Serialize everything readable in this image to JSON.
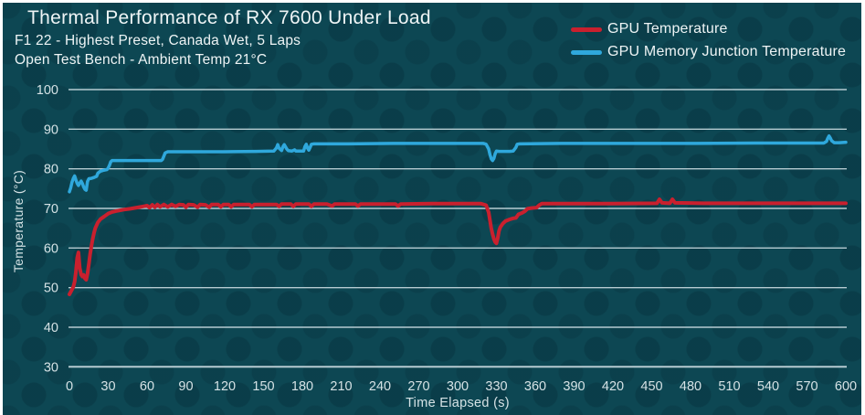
{
  "header": {
    "title": "Thermal Performance of RX 7600 Under Load",
    "subtitle1": "F1 22 - Highest Preset, Canada Wet, 5 Laps",
    "subtitle2": "Open Test Bench - Ambient Temp 21°C"
  },
  "legend": {
    "items": [
      {
        "label": "GPU Temperature",
        "color": "#c9202e"
      },
      {
        "label": "GPU Memory Junction Temperature",
        "color": "#2fa8dc"
      }
    ]
  },
  "colors": {
    "background": "#0d4753",
    "frame": "#ffffff",
    "grid": "#b6cbd1",
    "text": "#eef4f5",
    "tick": "#d5e2e5",
    "red": "#c9202e",
    "blue": "#2fa8dc"
  },
  "chart_data": {
    "type": "line",
    "title": "Thermal Performance of RX 7600 Under Load",
    "subtitle": "F1 22 - Highest Preset, Canada Wet, 5 Laps | Open Test Bench - Ambient Temp 21°C",
    "xlabel": "Time Elapsed (s)",
    "ylabel": "Temperature (°C)",
    "xlim": [
      0,
      600
    ],
    "ylim": [
      30,
      100
    ],
    "xticks": [
      0,
      30,
      60,
      90,
      120,
      150,
      180,
      210,
      240,
      270,
      300,
      330,
      360,
      390,
      420,
      450,
      480,
      510,
      540,
      570,
      600
    ],
    "yticks": [
      30,
      40,
      50,
      60,
      70,
      80,
      90,
      100
    ],
    "grid": "horizontal",
    "legend_position": "top-right",
    "series": [
      {
        "name": "GPU Temperature",
        "color": "#c9202e",
        "width": 4,
        "points": [
          [
            0,
            48.3
          ],
          [
            2,
            49.5
          ],
          [
            3,
            50.2
          ],
          [
            4,
            51.5
          ],
          [
            5,
            54
          ],
          [
            6,
            57.5
          ],
          [
            7,
            58.9
          ],
          [
            8,
            55
          ],
          [
            9,
            53.3
          ],
          [
            10,
            52.8
          ],
          [
            11,
            53.2
          ],
          [
            12,
            52.3
          ],
          [
            13,
            52
          ],
          [
            14,
            53.5
          ],
          [
            15,
            56
          ],
          [
            16,
            58.5
          ],
          [
            17,
            60.5
          ],
          [
            18,
            62.3
          ],
          [
            19,
            63.8
          ],
          [
            20,
            65
          ],
          [
            22,
            66.5
          ],
          [
            24,
            67.3
          ],
          [
            27,
            68
          ],
          [
            30,
            68.7
          ],
          [
            33,
            69.1
          ],
          [
            37,
            69.4
          ],
          [
            42,
            69.7
          ],
          [
            47,
            69.9
          ],
          [
            52,
            70.2
          ],
          [
            57,
            70.5
          ],
          [
            60,
            70.7
          ],
          [
            62,
            70.2
          ],
          [
            64,
            70.9
          ],
          [
            66,
            70.3
          ],
          [
            68,
            71
          ],
          [
            70,
            70.4
          ],
          [
            73,
            71
          ],
          [
            76,
            70.4
          ],
          [
            79,
            71
          ],
          [
            82,
            70.5
          ],
          [
            85,
            71
          ],
          [
            88,
            70.9
          ],
          [
            90,
            70.3
          ],
          [
            92,
            71
          ],
          [
            96,
            70.9
          ],
          [
            99,
            70.3
          ],
          [
            101,
            71
          ],
          [
            105,
            70.9
          ],
          [
            108,
            70.3
          ],
          [
            110,
            71
          ],
          [
            115,
            71
          ],
          [
            117,
            70.4
          ],
          [
            119,
            71
          ],
          [
            123,
            71
          ],
          [
            125,
            70.4
          ],
          [
            127,
            71
          ],
          [
            133,
            71
          ],
          [
            139,
            71
          ],
          [
            141,
            70.4
          ],
          [
            143,
            71
          ],
          [
            152,
            71
          ],
          [
            160,
            71
          ],
          [
            162,
            70.5
          ],
          [
            164,
            71.1
          ],
          [
            171,
            71.1
          ],
          [
            173,
            70.5
          ],
          [
            175,
            71.1
          ],
          [
            185,
            71.1
          ],
          [
            187,
            70.5
          ],
          [
            189,
            71.1
          ],
          [
            199,
            71.1
          ],
          [
            203,
            70.6
          ],
          [
            205,
            71.1
          ],
          [
            221,
            71.1
          ],
          [
            223,
            70.6
          ],
          [
            225,
            71.1
          ],
          [
            252,
            71.1
          ],
          [
            254,
            70.6
          ],
          [
            256,
            71.1
          ],
          [
            280,
            71.2
          ],
          [
            318,
            71.2
          ],
          [
            322,
            70.8
          ],
          [
            324,
            69
          ],
          [
            325,
            67
          ],
          [
            326,
            65
          ],
          [
            327,
            63.5
          ],
          [
            328,
            62.3
          ],
          [
            329,
            61.5
          ],
          [
            330,
            61.2
          ],
          [
            331,
            62.5
          ],
          [
            332,
            64.3
          ],
          [
            333,
            65.3
          ],
          [
            335,
            66.2
          ],
          [
            337,
            66.8
          ],
          [
            340,
            67.2
          ],
          [
            343,
            67.5
          ],
          [
            345,
            67.6
          ],
          [
            347,
            68.5
          ],
          [
            350,
            68.9
          ],
          [
            352,
            69.3
          ],
          [
            354,
            69.9
          ],
          [
            357,
            70.1
          ],
          [
            361,
            70.2
          ],
          [
            363,
            70.8
          ],
          [
            365,
            71.2
          ],
          [
            380,
            71.2
          ],
          [
            420,
            71.2
          ],
          [
            454,
            71.3
          ],
          [
            456,
            72.3
          ],
          [
            458,
            71.4
          ],
          [
            464,
            71.3
          ],
          [
            466,
            72.3
          ],
          [
            468,
            71.4
          ],
          [
            490,
            71.3
          ],
          [
            540,
            71.3
          ],
          [
            600,
            71.3
          ]
        ]
      },
      {
        "name": "GPU Memory Junction Temperature",
        "color": "#2fa8dc",
        "width": 3.5,
        "points": [
          [
            0,
            74.2
          ],
          [
            1,
            75.2
          ],
          [
            2,
            76.6
          ],
          [
            3,
            77.6
          ],
          [
            4,
            78.2
          ],
          [
            5,
            77.2
          ],
          [
            6,
            76.3
          ],
          [
            7,
            75.8
          ],
          [
            8,
            76.4
          ],
          [
            9,
            76.9
          ],
          [
            10,
            76.3
          ],
          [
            11,
            75.4
          ],
          [
            12,
            74.8
          ],
          [
            13,
            74.6
          ],
          [
            14,
            76.8
          ],
          [
            15,
            77.5
          ],
          [
            17,
            77.6
          ],
          [
            19,
            77.8
          ],
          [
            21,
            78.1
          ],
          [
            22,
            78.9
          ],
          [
            24,
            79.4
          ],
          [
            26,
            79.6
          ],
          [
            29,
            79.8
          ],
          [
            30,
            80.2
          ],
          [
            31,
            80.9
          ],
          [
            32,
            81.8
          ],
          [
            33,
            82.1
          ],
          [
            45,
            82.1
          ],
          [
            60,
            82.1
          ],
          [
            71,
            82.1
          ],
          [
            72,
            82.4
          ],
          [
            73,
            83.2
          ],
          [
            74,
            84
          ],
          [
            76,
            84.3
          ],
          [
            95,
            84.3
          ],
          [
            120,
            84.3
          ],
          [
            145,
            84.4
          ],
          [
            158,
            84.5
          ],
          [
            160,
            85.3
          ],
          [
            161,
            86.1
          ],
          [
            162,
            85.2
          ],
          [
            164,
            84.6
          ],
          [
            165,
            85.6
          ],
          [
            166,
            86.1
          ],
          [
            168,
            85
          ],
          [
            169,
            84.6
          ],
          [
            172,
            84.5
          ],
          [
            174,
            84.8
          ],
          [
            175,
            84.5
          ],
          [
            181,
            84.5
          ],
          [
            182,
            85.6
          ],
          [
            183,
            86.2
          ],
          [
            184,
            85.2
          ],
          [
            185,
            84.7
          ],
          [
            186,
            85.4
          ],
          [
            187,
            86.2
          ],
          [
            189,
            86.3
          ],
          [
            210,
            86.3
          ],
          [
            250,
            86.4
          ],
          [
            290,
            86.4
          ],
          [
            320,
            86.4
          ],
          [
            322,
            86.2
          ],
          [
            324,
            85
          ],
          [
            325,
            83.6
          ],
          [
            326,
            82.5
          ],
          [
            327,
            82.1
          ],
          [
            328,
            82.6
          ],
          [
            329,
            83.8
          ],
          [
            330,
            84.5
          ],
          [
            332,
            84.4
          ],
          [
            336,
            84.4
          ],
          [
            340,
            84.4
          ],
          [
            343,
            84.5
          ],
          [
            345,
            85.4
          ],
          [
            346,
            86.2
          ],
          [
            348,
            86.3
          ],
          [
            380,
            86.4
          ],
          [
            430,
            86.4
          ],
          [
            480,
            86.4
          ],
          [
            530,
            86.5
          ],
          [
            570,
            86.5
          ],
          [
            583,
            86.5
          ],
          [
            585,
            86.9
          ],
          [
            586,
            87.7
          ],
          [
            587,
            88.3
          ],
          [
            588,
            87.8
          ],
          [
            589,
            87.1
          ],
          [
            591,
            86.6
          ],
          [
            595,
            86.6
          ],
          [
            600,
            86.7
          ]
        ]
      }
    ]
  }
}
